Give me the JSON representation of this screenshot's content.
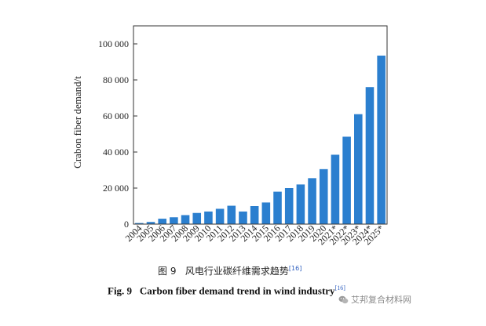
{
  "chart_data": {
    "type": "bar",
    "ylabel": "Crabon fiber demand/t",
    "xlabel": "",
    "ylim": [
      0,
      110000
    ],
    "yticks": [
      0,
      20000,
      40000,
      60000,
      80000,
      100000
    ],
    "ytick_labels": [
      "0",
      "20 000",
      "40 000",
      "60 000",
      "80 000",
      "100 000"
    ],
    "categories": [
      "2004",
      "2005",
      "2006",
      "2007",
      "2008",
      "2009",
      "2010",
      "2011",
      "2012",
      "2013",
      "2014",
      "2015",
      "2016",
      "2017",
      "2018",
      "2019",
      "2020",
      "2021*",
      "2022*",
      "2023*",
      "2024*",
      "2025*"
    ],
    "values": [
      600,
      1200,
      3000,
      3800,
      5000,
      6200,
      7000,
      8500,
      10200,
      7000,
      10000,
      12000,
      18000,
      20000,
      22000,
      25500,
      30500,
      38500,
      48500,
      61000,
      76000,
      93500
    ],
    "bar_color": "#2b7fcf",
    "grid": false
  },
  "caption": {
    "cn_label": "图 9",
    "cn_text": "风电行业碳纤维需求趋势",
    "cn_ref": "[16]",
    "en_label": "Fig. 9",
    "en_text": "Carbon fiber demand trend in wind industry",
    "en_ref": "[16]"
  },
  "watermark": {
    "text": "艾邦复合材料网",
    "icon": "wechat-icon"
  }
}
